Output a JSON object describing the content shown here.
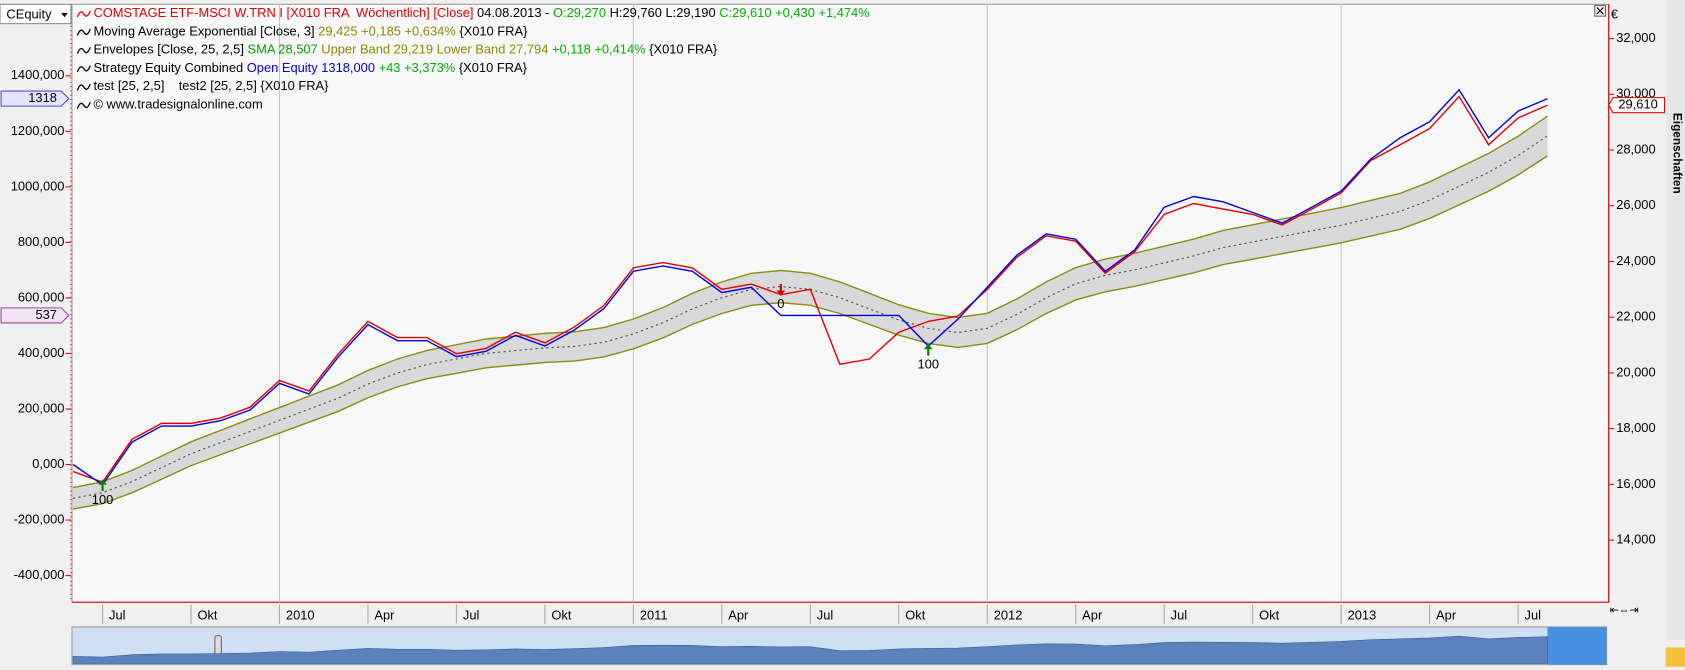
{
  "ui": {
    "selector": "CEquity",
    "unit": "€",
    "side_tab": "Eigenschaften"
  },
  "chart_data": {
    "type": "line",
    "legend": [
      {
        "parts": [
          "COMSTAGE ETF-MSCI W.TRN I [X010 FRA  Wöchentlich] [Close]",
          " 04.08.2013 - ",
          "O:29,270",
          " H:29,760 L:29,190 ",
          "C:29,610 +0,430 +1,474%"
        ],
        "colors": [
          "#e00000",
          "#000000",
          "#00b000",
          "#000000",
          "#00b000"
        ]
      },
      {
        "parts": [
          "Moving Average Exponential [Close, 3]",
          " 29,425 +0,185 +0,634%",
          " {X010 FRA}"
        ],
        "colors": [
          "#000000",
          "#8a8a00",
          "#000000"
        ]
      },
      {
        "parts": [
          "Envelopes [Close, 25, 2,5]",
          " SMA 28,507",
          " Upper Band 29,219 Lower Band 27,794",
          " +0,118 +0,414%",
          " {X010 FRA}"
        ],
        "colors": [
          "#000000",
          "#00a000",
          "#8a8a00",
          "#00b000",
          "#000000"
        ]
      },
      {
        "parts": [
          "Strategy Equity Combined",
          " Open Equity 1318,000",
          " +43 +3,373%",
          " {X010 FRA}"
        ],
        "colors": [
          "#000000",
          "#0000e0",
          "#00b000",
          "#000000"
        ]
      },
      {
        "parts": [
          "test [25, 2,5]",
          "    test2 [25, 2,5] {X010 FRA}"
        ],
        "colors": [
          "#000000",
          "#000000"
        ]
      },
      {
        "parts": [
          "© www.tradesignalonline.com"
        ],
        "colors": [
          "#000000"
        ]
      }
    ],
    "x": [
      "2009-06",
      "2009-07",
      "2009-08",
      "2009-09",
      "2009-10",
      "2009-11",
      "2009-12",
      "2010-01",
      "2010-02",
      "2010-03",
      "2010-04",
      "2010-05",
      "2010-06",
      "2010-07",
      "2010-08",
      "2010-09",
      "2010-10",
      "2010-11",
      "2010-12",
      "2011-01",
      "2011-02",
      "2011-03",
      "2011-04",
      "2011-05",
      "2011-06",
      "2011-07",
      "2011-08",
      "2011-09",
      "2011-10",
      "2011-11",
      "2011-12",
      "2012-01",
      "2012-02",
      "2012-03",
      "2012-04",
      "2012-05",
      "2012-06",
      "2012-07",
      "2012-08",
      "2012-09",
      "2012-10",
      "2012-11",
      "2012-12",
      "2013-01",
      "2013-02",
      "2013-03",
      "2013-04",
      "2013-05",
      "2013-06",
      "2013-07",
      "2013-08"
    ],
    "xlim": [
      "2009-06",
      "2013-10"
    ],
    "xticks": [
      {
        "value": "2009-07",
        "label": "Jul"
      },
      {
        "value": "2009-10",
        "label": "Okt"
      },
      {
        "value": "2010-01",
        "label": "2010"
      },
      {
        "value": "2010-04",
        "label": "Apr"
      },
      {
        "value": "2010-07",
        "label": "Jul"
      },
      {
        "value": "2010-10",
        "label": "Okt"
      },
      {
        "value": "2011-01",
        "label": "2011"
      },
      {
        "value": "2011-04",
        "label": "Apr"
      },
      {
        "value": "2011-07",
        "label": "Jul"
      },
      {
        "value": "2011-10",
        "label": "Okt"
      },
      {
        "value": "2012-01",
        "label": "2012"
      },
      {
        "value": "2012-04",
        "label": "Apr"
      },
      {
        "value": "2012-07",
        "label": "Jul"
      },
      {
        "value": "2012-10",
        "label": "Okt"
      },
      {
        "value": "2013-01",
        "label": "2013"
      },
      {
        "value": "2013-04",
        "label": "Apr"
      },
      {
        "value": "2013-07",
        "label": "Jul"
      }
    ],
    "ylim": [
      -496150,
      1657700
    ],
    "yticks": [
      {
        "value": -400000,
        "label": "-400,000"
      },
      {
        "value": -200000,
        "label": "-200,000"
      },
      {
        "value": 0,
        "label": "0,000"
      },
      {
        "value": 200000,
        "label": "200,000"
      },
      {
        "value": 400000,
        "label": "400,000"
      },
      {
        "value": 600000,
        "label": "600,000"
      },
      {
        "value": 800000,
        "label": "800,000"
      },
      {
        "value": 1000000,
        "label": "1000,000"
      },
      {
        "value": 1200000,
        "label": "1200,000"
      },
      {
        "value": 1400000,
        "label": "1400,000"
      }
    ],
    "y2lim": [
      11770,
      33230
    ],
    "y2ticks": [
      {
        "value": 14000,
        "label": "14,000"
      },
      {
        "value": 16000,
        "label": "16,000"
      },
      {
        "value": 18000,
        "label": "18,000"
      },
      {
        "value": 20000,
        "label": "20,000"
      },
      {
        "value": 22000,
        "label": "22,000"
      },
      {
        "value": 24000,
        "label": "24,000"
      },
      {
        "value": 26000,
        "label": "26,000"
      },
      {
        "value": 28000,
        "label": "28,000"
      },
      {
        "value": 30000,
        "label": "30,000"
      },
      {
        "value": 32000,
        "label": "32,000"
      }
    ],
    "band_fill": "#d9d9d9",
    "series": [
      {
        "color": "#8a8a10",
        "axis": "y2",
        "values": [
          15888,
          16093,
          16503,
          17015,
          17528,
          17938,
          18348,
          18758,
          19168,
          19578,
          20090,
          20500,
          20808,
          21013,
          21218,
          21320,
          21423,
          21474,
          21628,
          21935,
          22345,
          22858,
          23268,
          23575,
          23678,
          23575,
          23268,
          22858,
          22448,
          22140,
          21986,
          22140,
          22653,
          23268,
          23780,
          24088,
          24293,
          24549,
          24805,
          25113,
          25318,
          25523,
          25728,
          25933,
          26189,
          26445,
          26855,
          27368,
          27880,
          28495,
          29219
        ]
      },
      {
        "color": "#8a8a10",
        "axis": "y2",
        "values": [
          15113,
          15308,
          15698,
          16185,
          16673,
          17063,
          17453,
          17843,
          18233,
          18623,
          19110,
          19500,
          19793,
          19988,
          20183,
          20280,
          20378,
          20426,
          20573,
          20865,
          21255,
          21743,
          22133,
          22425,
          22523,
          22425,
          22133,
          21743,
          21353,
          21060,
          20914,
          21060,
          21548,
          22133,
          22620,
          22913,
          23108,
          23351,
          23595,
          23888,
          24083,
          24278,
          24473,
          24668,
          24911,
          25155,
          25545,
          26033,
          26520,
          27105,
          27794
        ]
      },
      {
        "color": "#404040",
        "axis": "y2",
        "dash": "2 3",
        "values": [
          15500,
          15700,
          16100,
          16600,
          17100,
          17500,
          17900,
          18300,
          18700,
          19100,
          19600,
          20000,
          20300,
          20500,
          20700,
          20800,
          20900,
          20950,
          21100,
          21400,
          21800,
          22300,
          22700,
          23000,
          23100,
          23000,
          22700,
          22300,
          21900,
          21600,
          21450,
          21600,
          22100,
          22700,
          23200,
          23500,
          23700,
          23950,
          24200,
          24500,
          24700,
          24900,
          25100,
          25300,
          25550,
          25800,
          26200,
          26700,
          27200,
          27800,
          28507
        ]
      },
      {
        "color": "#e00000",
        "axis": "y2",
        "values": [
          16460,
          16080,
          17620,
          18190,
          18190,
          18380,
          18770,
          19730,
          19350,
          20690,
          21850,
          21270,
          21270,
          20690,
          20880,
          21460,
          21080,
          21650,
          22420,
          23770,
          23960,
          23770,
          23000,
          23190,
          22810,
          23000,
          20310,
          20500,
          21460,
          21850,
          22040,
          23000,
          24150,
          24920,
          24730,
          23580,
          24350,
          25690,
          26080,
          25880,
          25690,
          25310,
          25880,
          26460,
          27620,
          28190,
          28770,
          29920,
          28190,
          29150,
          29610
        ]
      },
      {
        "color": "#0000e0",
        "axis": "y",
        "values": [
          0,
          -73000,
          80800,
          138500,
          138500,
          157700,
          196200,
          292300,
          253800,
          388500,
          503800,
          446100,
          446100,
          388500,
          407700,
          465400,
          426900,
          484600,
          561500,
          696100,
          715400,
          696100,
          619200,
          638400,
          537000,
          537000,
          537000,
          537000,
          537000,
          426900,
          523000,
          638400,
          753800,
          830700,
          811500,
          696100,
          773000,
          926900,
          965300,
          946100,
          907700,
          869200,
          926900,
          984600,
          1100000,
          1176900,
          1234600,
          1350000,
          1176900,
          1273100,
          1318000
        ]
      }
    ],
    "markers": [
      {
        "axis": "y",
        "value": 1318000,
        "label": "1318",
        "color": "#5050d0",
        "fill": "#e4e4ff"
      },
      {
        "axis": "y",
        "value": 537000,
        "label": "537",
        "color": "#a040a0",
        "fill": "#f3e4f3"
      },
      {
        "axis": "y2",
        "value": 29610,
        "label": "29,610",
        "color": "#e00000",
        "fill": "#ffffff"
      }
    ],
    "annotations": [
      {
        "text": "100",
        "x": "2009-07",
        "y": -115000,
        "color": "#008000",
        "dir": "up"
      },
      {
        "text": "0",
        "x": "2011-06",
        "y": 592000,
        "color": "#d00000",
        "dir": "down"
      },
      {
        "text": "100",
        "x": "2011-11",
        "y": 373000,
        "color": "#008000",
        "dir": "up"
      }
    ]
  }
}
